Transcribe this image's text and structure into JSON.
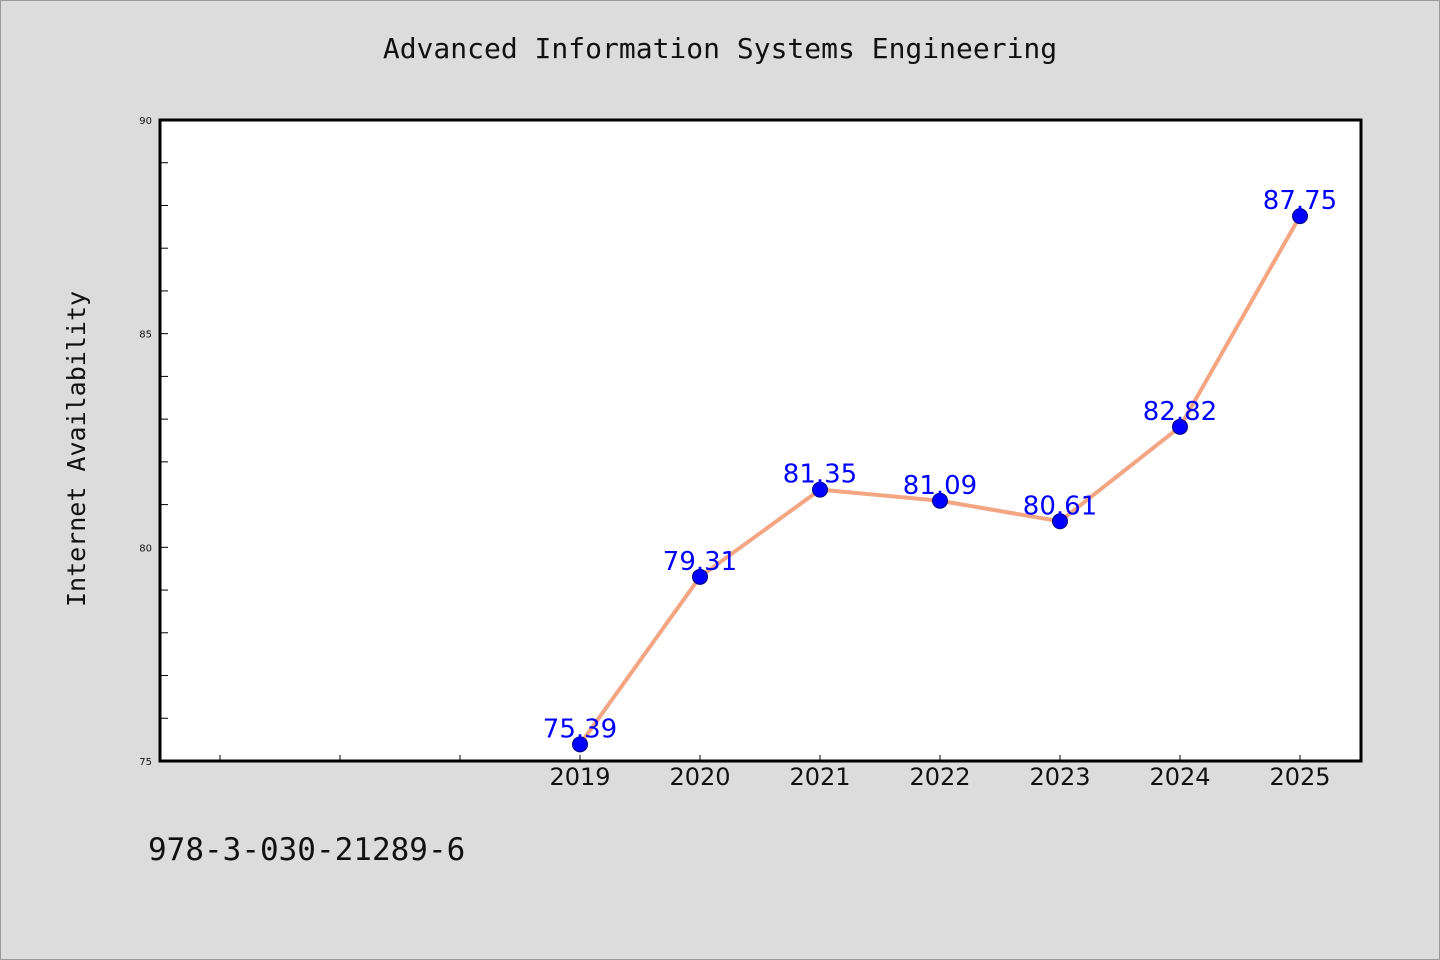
{
  "title": "Advanced Information Systems Engineering",
  "footer_text": "978-3-030-21289-6",
  "chart_data": {
    "type": "line",
    "title": "Advanced Information Systems Engineering",
    "xlabel": "",
    "ylabel": "Internet Availability",
    "categories": [
      "2019",
      "2020",
      "2021",
      "2022",
      "2023",
      "2024",
      "2025"
    ],
    "series": [
      {
        "values": [
          75.39,
          79.31,
          81.35,
          81.09,
          80.61,
          82.82,
          87.75
        ],
        "value_labels": [
          "75.39",
          "79.31",
          "81.35",
          "81.09",
          "80.61",
          "82.82",
          "87.75"
        ]
      }
    ],
    "ylim": [
      75,
      90
    ],
    "y_tick_labels": [
      "75",
      "80",
      "85",
      "90"
    ],
    "grid": false,
    "legend": "none",
    "colors": {
      "line": "#f4a582",
      "marker": "#0000ff",
      "marker_edge": "#000080",
      "data_label": "#0000ff",
      "plot_background": "#ffffff",
      "figure_background": "#dcdcdc"
    }
  }
}
